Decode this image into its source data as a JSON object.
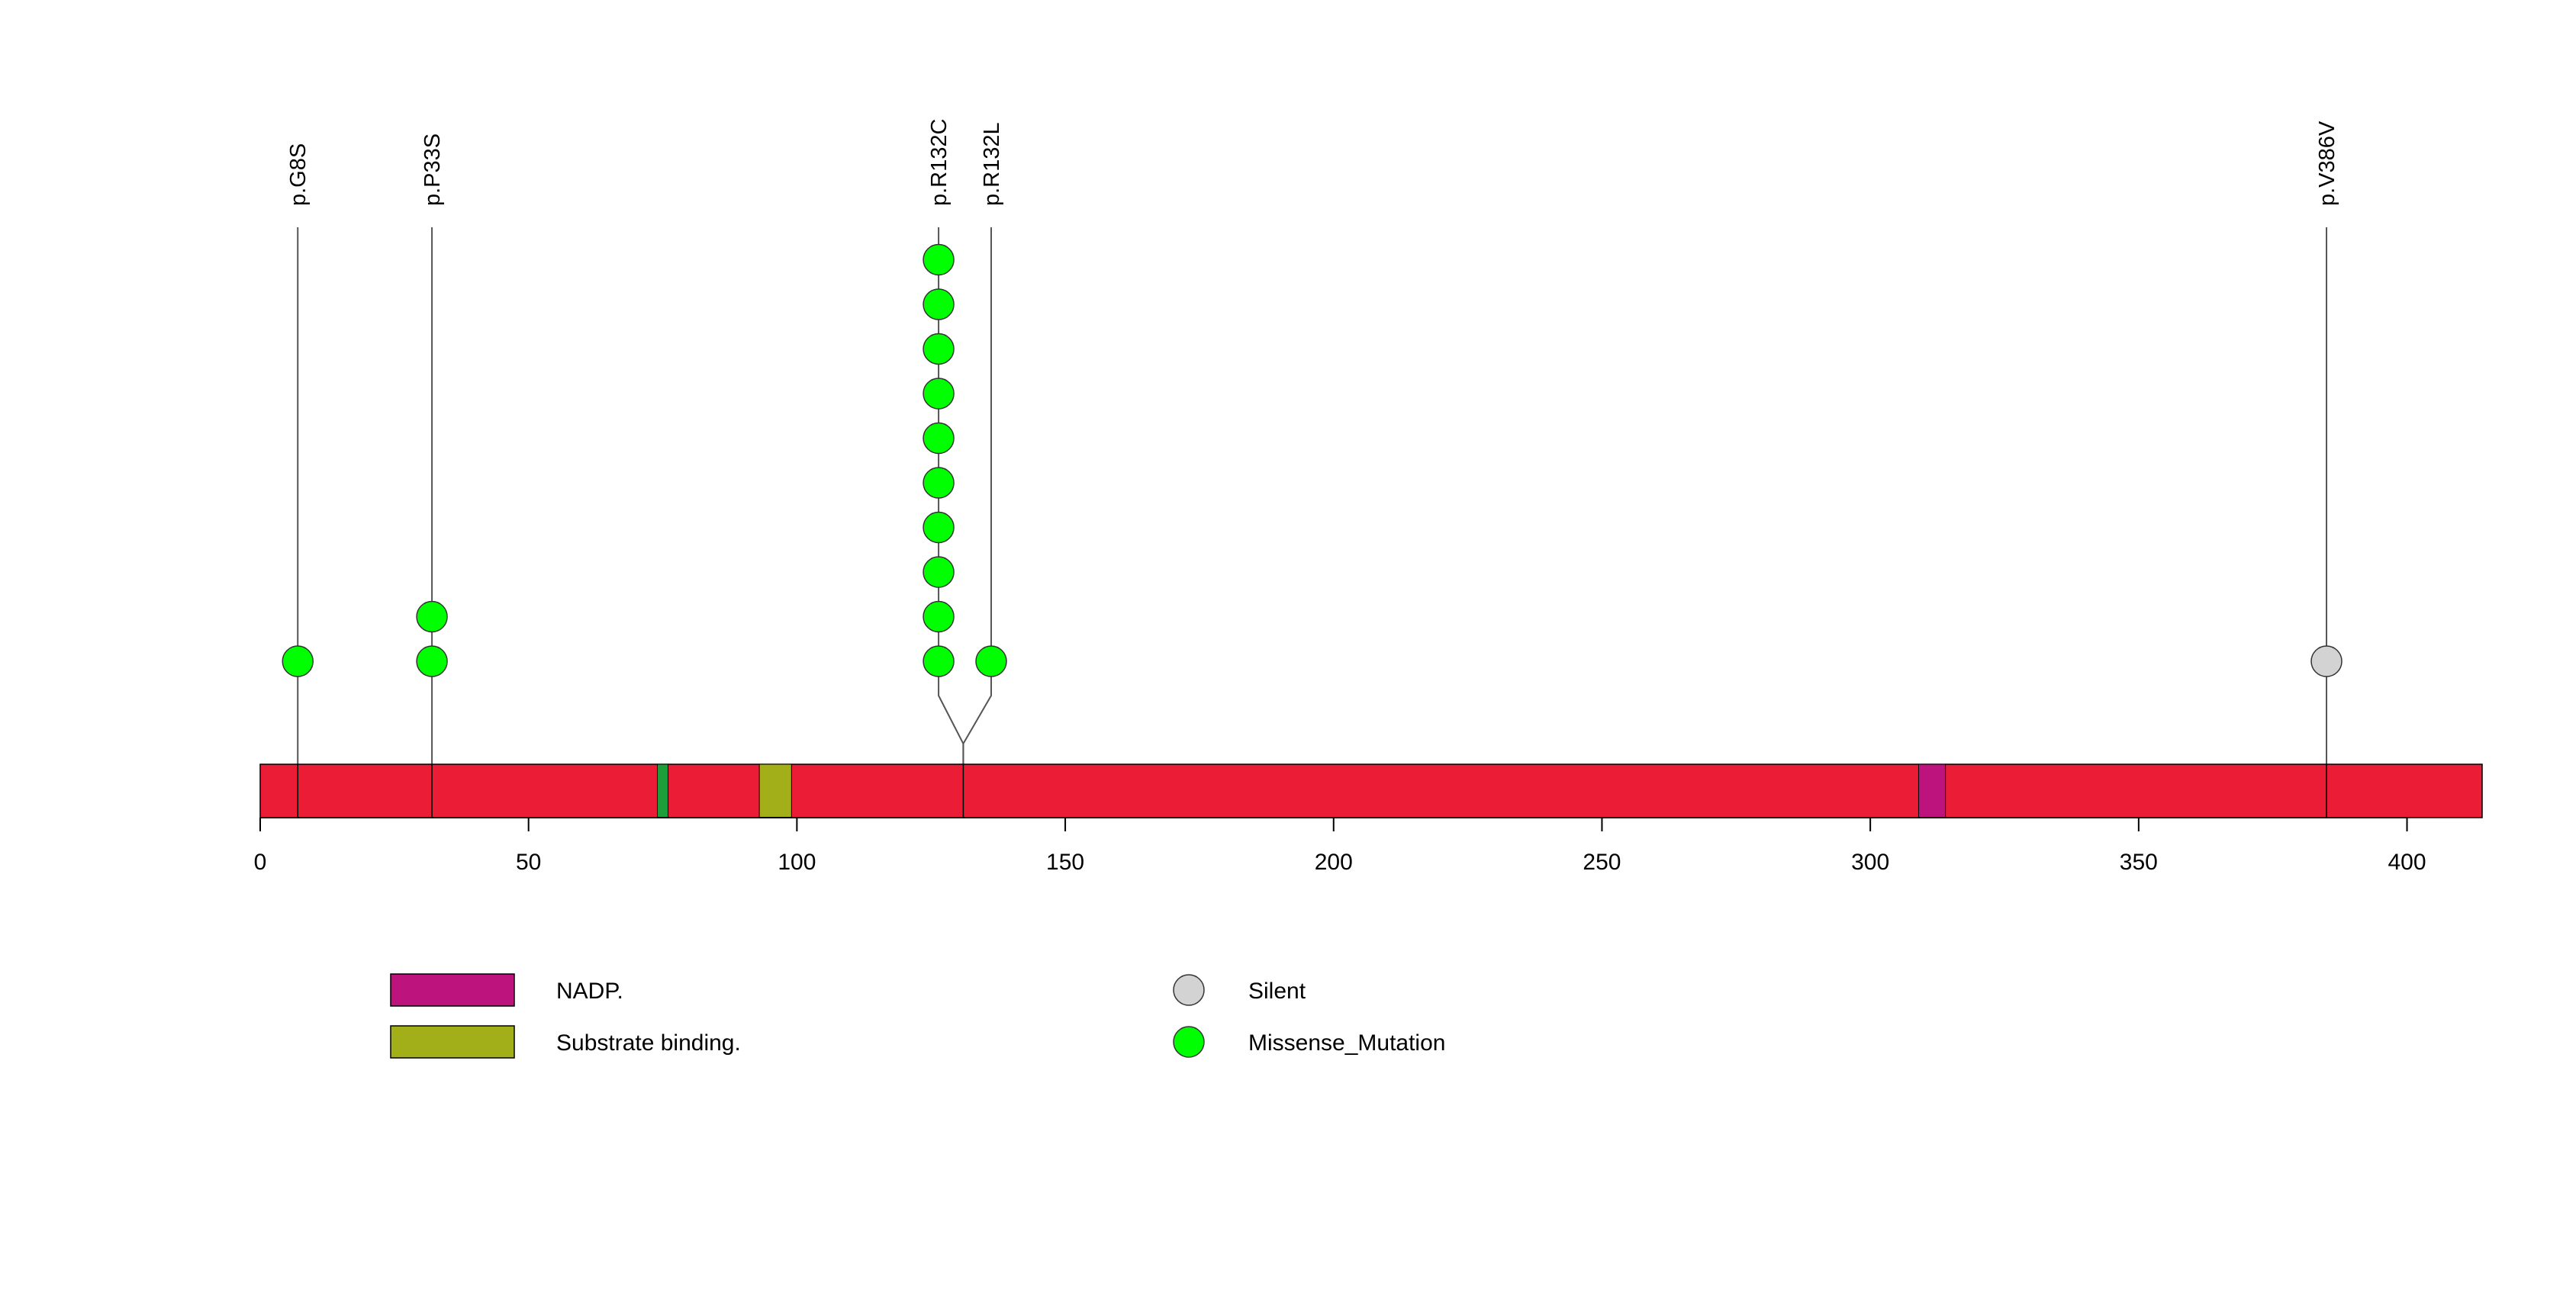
{
  "chart_data": {
    "type": "lollipop",
    "protein_length": 414,
    "xlim": [
      0,
      414
    ],
    "x_ticks": [
      0,
      50,
      100,
      150,
      200,
      250,
      300,
      350,
      400
    ],
    "x_tick_labels": [
      "0",
      "50",
      "100",
      "150",
      "200",
      "250",
      "300",
      "350",
      "400"
    ],
    "colors": {
      "backbone": "#EB1C36",
      "nadp": "#BC137D",
      "substrate_binding": "#A2AF18",
      "small_domain": "#1E9E3A",
      "missense": "#00FF00",
      "silent": "#D3D3D3",
      "stem": "#555555"
    },
    "domains": [
      {
        "start": 74,
        "end": 76,
        "category": "small_domain"
      },
      {
        "start": 93,
        "end": 99,
        "category": "substrate_binding"
      },
      {
        "start": 309,
        "end": 314,
        "category": "nadp"
      }
    ],
    "mutations": [
      {
        "label": "p.G8S",
        "position": 7,
        "count": 1,
        "type": "Missense_Mutation"
      },
      {
        "label": "p.P33S",
        "position": 32,
        "count": 2,
        "type": "Missense_Mutation"
      },
      {
        "label": "p.R132C",
        "position": 131,
        "display_position": 126.4,
        "count": 10,
        "type": "Missense_Mutation"
      },
      {
        "label": "p.R132L",
        "position": 131,
        "display_position": 136.2,
        "count": 1,
        "type": "Missense_Mutation"
      },
      {
        "label": "p.V386V",
        "position": 385,
        "count": 1,
        "type": "Silent"
      }
    ],
    "legend": {
      "domains": [
        {
          "label": "NADP.",
          "category": "nadp"
        },
        {
          "label": "Substrate binding.",
          "category": "substrate_binding"
        }
      ],
      "mutation_types": [
        {
          "label": "Silent",
          "category": "silent"
        },
        {
          "label": "Missense_Mutation",
          "category": "missense"
        }
      ]
    }
  }
}
